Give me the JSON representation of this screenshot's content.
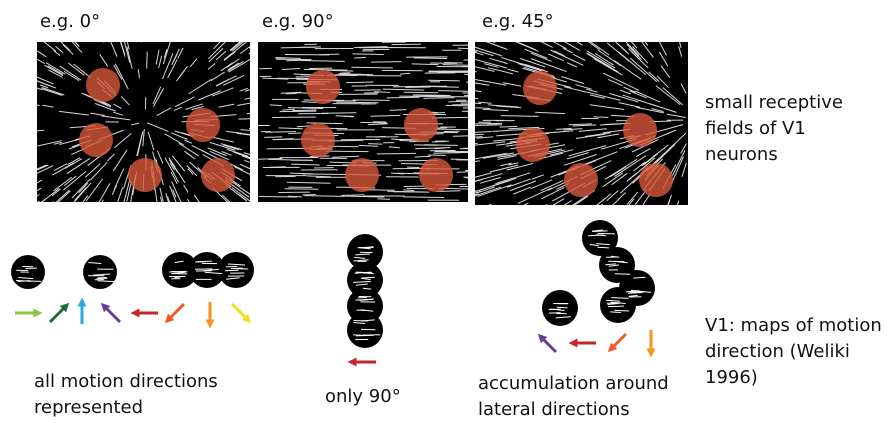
{
  "panels": [
    {
      "label": "e.g. 0°"
    },
    {
      "label": "e.g. 90°"
    },
    {
      "label": "e.g. 45°"
    }
  ],
  "side_notes": [
    {
      "lines": [
        "small receptive",
        "fields of V1",
        "neurons"
      ]
    },
    {
      "lines": [
        "V1: maps of motion",
        "direction (Weliki",
        "1996)"
      ]
    }
  ],
  "captions": [
    {
      "lines": [
        "all motion directions",
        "represented"
      ]
    },
    {
      "lines": [
        "only 90°"
      ]
    },
    {
      "lines": [
        "accumulation around",
        "lateral directions"
      ]
    }
  ]
}
